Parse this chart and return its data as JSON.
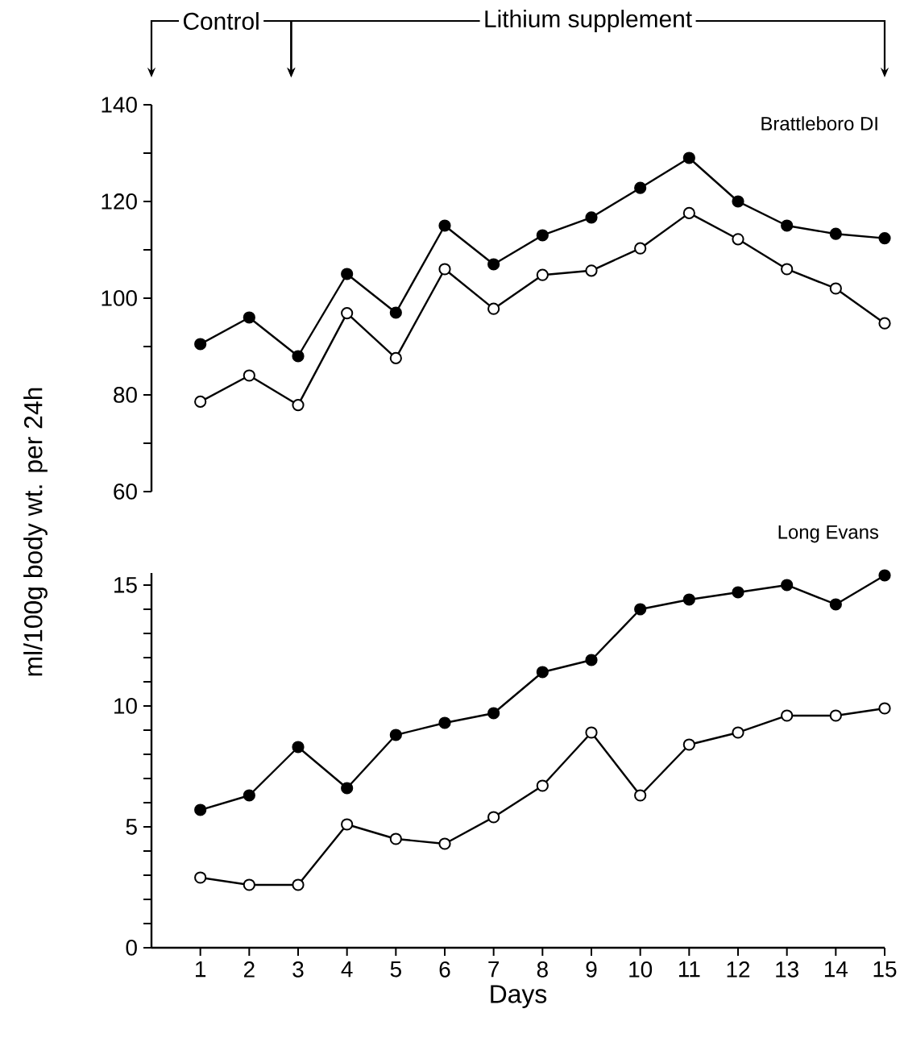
{
  "chart_data": [
    {
      "type": "line",
      "title": "Brattleboro DI",
      "ylabel": "ml/100g body wt. per 24h",
      "x": [
        1,
        2,
        3,
        4,
        5,
        6,
        7,
        8,
        9,
        10,
        11,
        12,
        13,
        14,
        15
      ],
      "xlim": [
        0,
        15
      ],
      "ylim": [
        60,
        140
      ],
      "tick_labels": "y",
      "marker": "circle",
      "line_style": "solid",
      "yticks": [
        60,
        {
          "value": 70,
          "label": null
        },
        80,
        {
          "value": 90,
          "label": null
        },
        100,
        {
          "value": 110,
          "label": null
        },
        120,
        {
          "value": 130,
          "label": null
        },
        140
      ],
      "annotations": [
        "Control",
        "Lithium supplement"
      ],
      "series": [
        {
          "color": "#000000",
          "values": [
            90.5,
            96,
            88,
            105,
            97,
            115,
            107,
            113,
            116.7,
            122.8,
            129,
            120,
            115,
            113.3,
            112.4
          ]
        },
        {
          "color": "#000000",
          "values": [
            78.6,
            84,
            77.9,
            96.9,
            87.6,
            106,
            97.8,
            104.8,
            105.7,
            110.3,
            117.6,
            112.2,
            106,
            102,
            94.8
          ]
        }
      ]
    },
    {
      "type": "line",
      "title": "Long Evans",
      "xlabel": "Days",
      "x": [
        1,
        2,
        3,
        4,
        5,
        6,
        7,
        8,
        9,
        10,
        11,
        12,
        13,
        14,
        15
      ],
      "xlim": [
        0,
        15
      ],
      "ylim": [
        0,
        15.5
      ],
      "marker": "circle",
      "line_style": "solid",
      "xticks": [
        1,
        2,
        3,
        4,
        5,
        6,
        7,
        8,
        9,
        10,
        11,
        12,
        13,
        14,
        15
      ],
      "yticks": [
        0,
        {
          "value": 1,
          "label": null
        },
        {
          "value": 2,
          "label": null
        },
        {
          "value": 3,
          "label": null
        },
        {
          "value": 4,
          "label": null
        },
        5,
        {
          "value": 6,
          "label": null
        },
        {
          "value": 7,
          "label": null
        },
        {
          "value": 8,
          "label": null
        },
        {
          "value": 9,
          "label": null
        },
        10,
        {
          "value": 11,
          "label": null
        },
        {
          "value": 12,
          "label": null
        },
        {
          "value": 13,
          "label": null
        },
        {
          "value": 14,
          "label": null
        },
        15
      ],
      "series": [
        {
          "color": "#000000",
          "values": [
            5.7,
            6.3,
            8.3,
            6.6,
            8.8,
            9.3,
            9.7,
            11.4,
            11.9,
            14.0,
            14.4,
            14.7,
            15.0,
            14.2,
            15.4
          ]
        },
        {
          "color": "#000000",
          "values": [
            2.9,
            2.6,
            2.6,
            5.1,
            4.5,
            4.3,
            5.4,
            6.7,
            8.9,
            6.3,
            8.4,
            8.9,
            9.6,
            9.6,
            9.9
          ]
        }
      ]
    }
  ]
}
